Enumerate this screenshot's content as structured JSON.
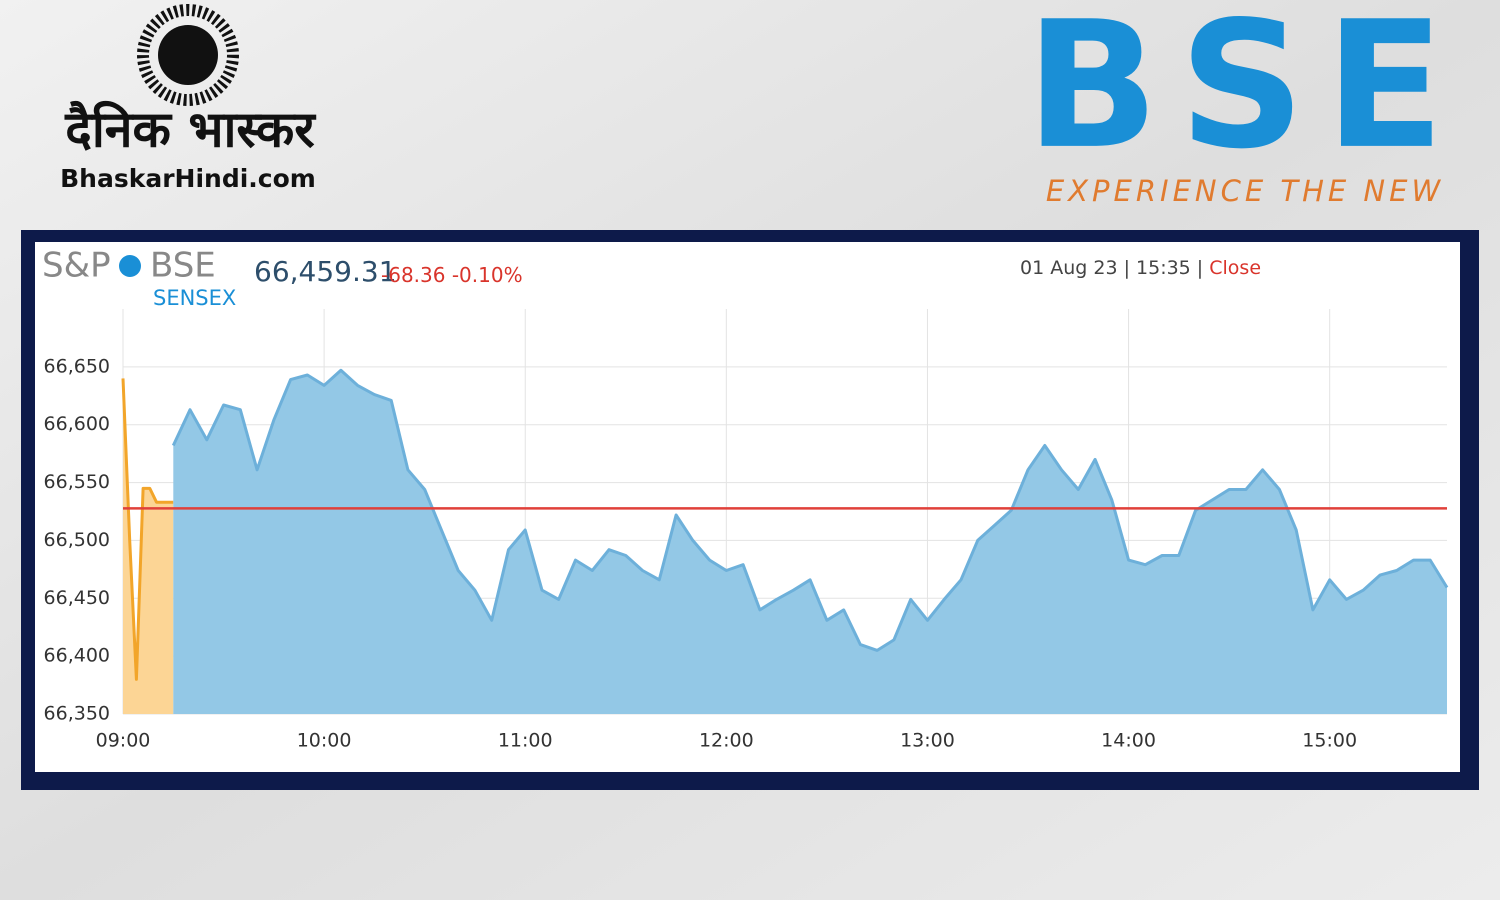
{
  "header": {
    "left_logo": {
      "name": "दैनिक भास्कर",
      "site": "BhaskarHindi.com"
    },
    "right_logo": {
      "name": "BSE",
      "tagline": "EXPERIENCE THE NEW"
    }
  },
  "chart_data": {
    "type": "area",
    "index": {
      "brand": "S&P",
      "exchange": "BSE",
      "name": "SENSEX"
    },
    "value": "66,459.31",
    "change": "-68.36",
    "change_percent": "-0.10%",
    "timestamp": "01 Aug 23 | 15:35 |",
    "status": "Close",
    "series": [
      {
        "name": "Pre-open",
        "color": "#f2a52a",
        "fill": "#fcd595",
        "x": [
          540,
          542,
          544,
          546,
          548,
          550,
          552,
          555
        ],
        "values": [
          66640,
          66500,
          66380,
          66545,
          66545,
          66533,
          66533,
          66533
        ]
      },
      {
        "name": "SENSEX",
        "color": "#6db0da",
        "fill": "#93c8e6",
        "x": [
          555,
          560,
          565,
          570,
          575,
          580,
          585,
          590,
          595,
          600,
          605,
          610,
          615,
          620,
          625,
          630,
          635,
          640,
          645,
          650,
          655,
          660,
          665,
          670,
          675,
          680,
          685,
          690,
          695,
          700,
          705,
          710,
          715,
          720,
          725,
          730,
          735,
          740,
          745,
          750,
          755,
          760,
          765,
          770,
          775,
          780,
          785,
          790,
          795,
          800,
          805,
          810,
          815,
          820,
          825,
          830,
          835,
          840,
          845,
          850,
          855,
          860,
          865,
          870,
          875,
          880,
          885,
          890,
          895,
          900,
          905,
          910,
          915,
          920,
          925,
          930,
          935
        ],
        "values": [
          66582,
          66613,
          66587,
          66617,
          66613,
          66561,
          66604,
          66639,
          66643,
          66634,
          66647,
          66634,
          66626,
          66621,
          66561,
          66544,
          66509,
          66474,
          66457,
          66431,
          66492,
          66509,
          66457,
          66449,
          66483,
          66474,
          66492,
          66487,
          66474,
          66466,
          66522,
          66500,
          66483,
          66474,
          66479,
          66440,
          66449,
          66457,
          66466,
          66431,
          66440,
          66410,
          66405,
          66414,
          66449,
          66431,
          66449,
          66466,
          66500,
          66513,
          66526,
          66561,
          66582,
          66561,
          66544,
          66570,
          66535,
          66483,
          66479,
          66487,
          66487,
          66526,
          66535,
          66544,
          66544,
          66561,
          66544,
          66509,
          66440,
          66466,
          66449,
          66457,
          66470,
          66474,
          66483,
          66483,
          66459.31
        ]
      }
    ],
    "previous_close": 66527.67,
    "previous_close_color": "#e0403a",
    "xlim": [
      540,
      935
    ],
    "xticks": [
      {
        "value": 540,
        "label": "09:00"
      },
      {
        "value": 600,
        "label": "10:00"
      },
      {
        "value": 660,
        "label": "11:00"
      },
      {
        "value": 720,
        "label": "12:00"
      },
      {
        "value": 780,
        "label": "13:00"
      },
      {
        "value": 840,
        "label": "14:00"
      },
      {
        "value": 900,
        "label": "15:00"
      }
    ],
    "ylim": [
      66350,
      66700
    ],
    "yticks": [
      {
        "value": 66350,
        "label": "66,350"
      },
      {
        "value": 66400,
        "label": "66,400"
      },
      {
        "value": 66450,
        "label": "66,450"
      },
      {
        "value": 66500,
        "label": "66,500"
      },
      {
        "value": 66550,
        "label": "66,550"
      },
      {
        "value": 66600,
        "label": "66,600"
      },
      {
        "value": 66650,
        "label": "66,650"
      }
    ],
    "grid": true
  }
}
